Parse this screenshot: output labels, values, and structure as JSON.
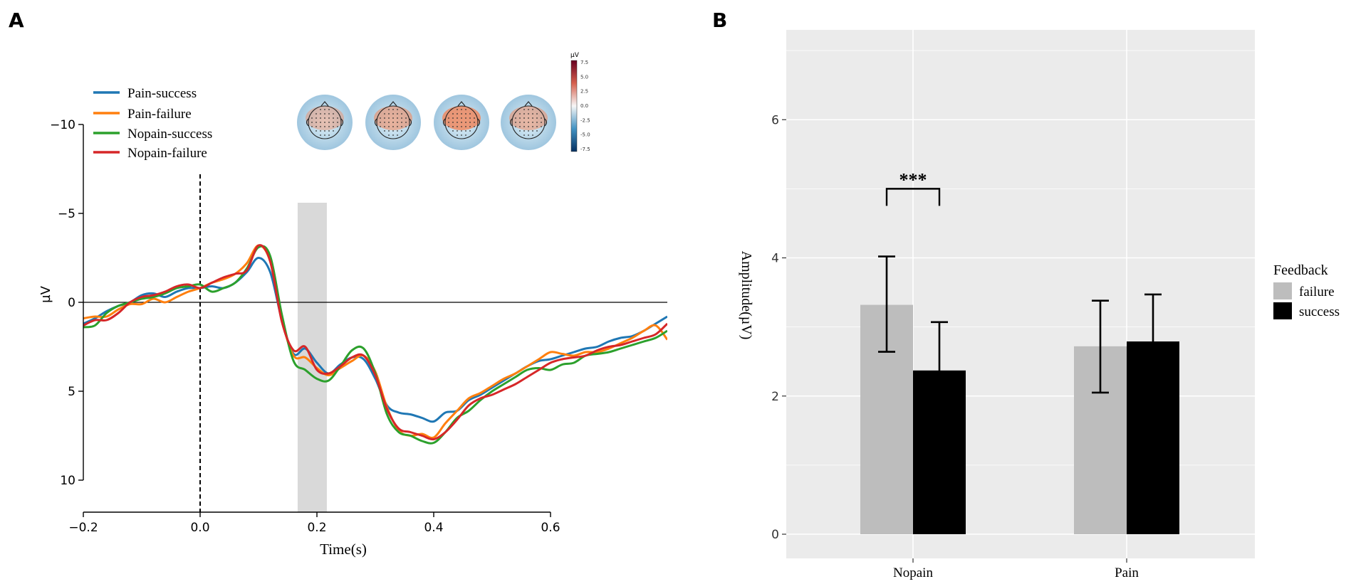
{
  "panels": {
    "a_label": "A",
    "b_label": "B"
  },
  "colors": {
    "pain_success": "#1f77b4",
    "pain_failure": "#ff7f0e",
    "nopain_success": "#2ca02c",
    "nopain_failure": "#d62728",
    "failure_bar": "#bdbdbd",
    "success_bar": "#000000",
    "panel_bg": "#ebebeb",
    "shade": "#d9d9d9"
  },
  "topomap": {
    "unit_label": "µV",
    "ticks": [
      "7.5",
      "5.0",
      "2.5",
      "0.0",
      "-2.5",
      "-5.0",
      "-7.5"
    ],
    "range": [
      -7.5,
      7.5
    ],
    "intensities": [
      0.45,
      0.6,
      0.85,
      0.55
    ]
  },
  "chart_data": [
    {
      "type": "line",
      "panel": "A",
      "title": "",
      "xlabel": "Time(s)",
      "ylabel": "µV",
      "xlim": [
        -0.2,
        0.8
      ],
      "ylim": [
        11.8,
        -11.8
      ],
      "y_inverted": true,
      "x_ticks": [
        -0.2,
        0.0,
        0.2,
        0.4,
        0.6
      ],
      "x_tick_labels": [
        "−0.2",
        "0.0",
        "0.2",
        "0.4",
        "0.6"
      ],
      "y_ticks": [
        -10,
        -5,
        0,
        5,
        10
      ],
      "y_tick_labels": [
        "−10",
        "−5",
        "0",
        "5",
        "10"
      ],
      "shaded_window": {
        "x": [
          0.167,
          0.217
        ],
        "y": [
          -5.6,
          11.8
        ]
      },
      "stimulus_line_x": 0.0,
      "legend": [
        "Pain-success",
        "Pain-failure",
        "Nopain-success",
        "Nopain-failure"
      ],
      "x": [
        -0.2,
        -0.18,
        -0.16,
        -0.14,
        -0.12,
        -0.1,
        -0.08,
        -0.06,
        -0.04,
        -0.02,
        0.0,
        0.02,
        0.04,
        0.06,
        0.08,
        0.1,
        0.12,
        0.14,
        0.16,
        0.18,
        0.2,
        0.22,
        0.24,
        0.26,
        0.28,
        0.3,
        0.32,
        0.34,
        0.36,
        0.38,
        0.4,
        0.42,
        0.44,
        0.46,
        0.48,
        0.5,
        0.52,
        0.54,
        0.56,
        0.58,
        0.6,
        0.62,
        0.64,
        0.66,
        0.68,
        0.7,
        0.72,
        0.74,
        0.76,
        0.78,
        0.8
      ],
      "series": [
        {
          "name": "Pain-success",
          "values": [
            1.2,
            0.9,
            0.5,
            0.2,
            0.0,
            -0.4,
            -0.5,
            -0.3,
            -0.6,
            -0.8,
            -0.8,
            -0.9,
            -0.8,
            -1.1,
            -1.7,
            -2.5,
            -1.7,
            1.0,
            2.9,
            2.6,
            3.4,
            4.0,
            3.5,
            3.1,
            3.2,
            4.3,
            5.8,
            6.2,
            6.3,
            6.5,
            6.7,
            6.2,
            6.1,
            5.5,
            5.2,
            4.8,
            4.4,
            4.0,
            3.6,
            3.3,
            3.2,
            3.0,
            2.8,
            2.6,
            2.5,
            2.2,
            2.0,
            1.9,
            1.6,
            1.2,
            0.8
          ]
        },
        {
          "name": "Pain-failure",
          "values": [
            0.9,
            0.8,
            0.8,
            0.4,
            0.1,
            0.1,
            -0.2,
            0.0,
            -0.3,
            -0.6,
            -0.8,
            -1.1,
            -1.3,
            -1.6,
            -2.2,
            -3.2,
            -2.3,
            1.0,
            3.0,
            3.1,
            3.7,
            4.1,
            3.7,
            3.3,
            3.0,
            3.9,
            5.9,
            7.2,
            7.5,
            7.4,
            7.6,
            6.8,
            6.1,
            5.4,
            5.1,
            4.7,
            4.3,
            4.0,
            3.6,
            3.2,
            2.8,
            2.9,
            3.0,
            2.8,
            2.8,
            2.6,
            2.3,
            2.0,
            1.6,
            1.3,
            2.1
          ]
        },
        {
          "name": "Nopain-success",
          "values": [
            1.4,
            1.3,
            0.6,
            0.2,
            0.0,
            -0.2,
            -0.3,
            -0.5,
            -0.8,
            -0.9,
            -1.0,
            -0.6,
            -0.8,
            -1.1,
            -1.9,
            -3.1,
            -2.6,
            0.7,
            3.3,
            3.8,
            4.3,
            4.4,
            3.6,
            2.7,
            2.6,
            4.0,
            6.3,
            7.3,
            7.5,
            7.8,
            7.9,
            7.3,
            6.5,
            6.1,
            5.5,
            5.0,
            4.6,
            4.2,
            3.8,
            3.7,
            3.8,
            3.5,
            3.4,
            3.0,
            2.9,
            2.8,
            2.6,
            2.4,
            2.2,
            2.0,
            1.6
          ]
        },
        {
          "name": "Nopain-failure",
          "values": [
            1.3,
            1.0,
            1.0,
            0.6,
            0.0,
            -0.3,
            -0.4,
            -0.6,
            -0.9,
            -1.0,
            -0.8,
            -1.1,
            -1.4,
            -1.6,
            -1.8,
            -3.2,
            -2.3,
            1.1,
            2.7,
            2.5,
            3.8,
            4.0,
            3.6,
            3.1,
            3.0,
            4.1,
            6.0,
            7.1,
            7.3,
            7.5,
            7.7,
            7.3,
            6.6,
            5.8,
            5.4,
            5.2,
            4.9,
            4.6,
            4.2,
            3.8,
            3.4,
            3.2,
            3.1,
            3.0,
            2.7,
            2.5,
            2.4,
            2.2,
            2.0,
            1.8,
            1.2
          ]
        }
      ]
    },
    {
      "type": "bar",
      "panel": "B",
      "title": "",
      "xlabel": "",
      "ylabel": "Amplitude(µV)",
      "ylim": [
        -0.35,
        7.3
      ],
      "y_ticks": [
        0,
        2,
        4,
        6
      ],
      "y_tick_labels": [
        "0",
        "2",
        "4",
        "6"
      ],
      "categories": [
        "Nopain",
        "Pain"
      ],
      "legend_title": "Feedback",
      "series": [
        {
          "name": "failure",
          "values": [
            3.32,
            2.72
          ],
          "error_low": [
            2.64,
            2.05
          ],
          "error_high": [
            4.02,
            3.38
          ]
        },
        {
          "name": "success",
          "values": [
            2.37,
            2.79
          ],
          "error_low": [
            1.7,
            2.12
          ],
          "error_high": [
            3.07,
            3.47
          ]
        }
      ],
      "annotation": {
        "text": "***",
        "between": [
          "Nopain failure",
          "Nopain success"
        ],
        "y": 5.0
      }
    }
  ]
}
